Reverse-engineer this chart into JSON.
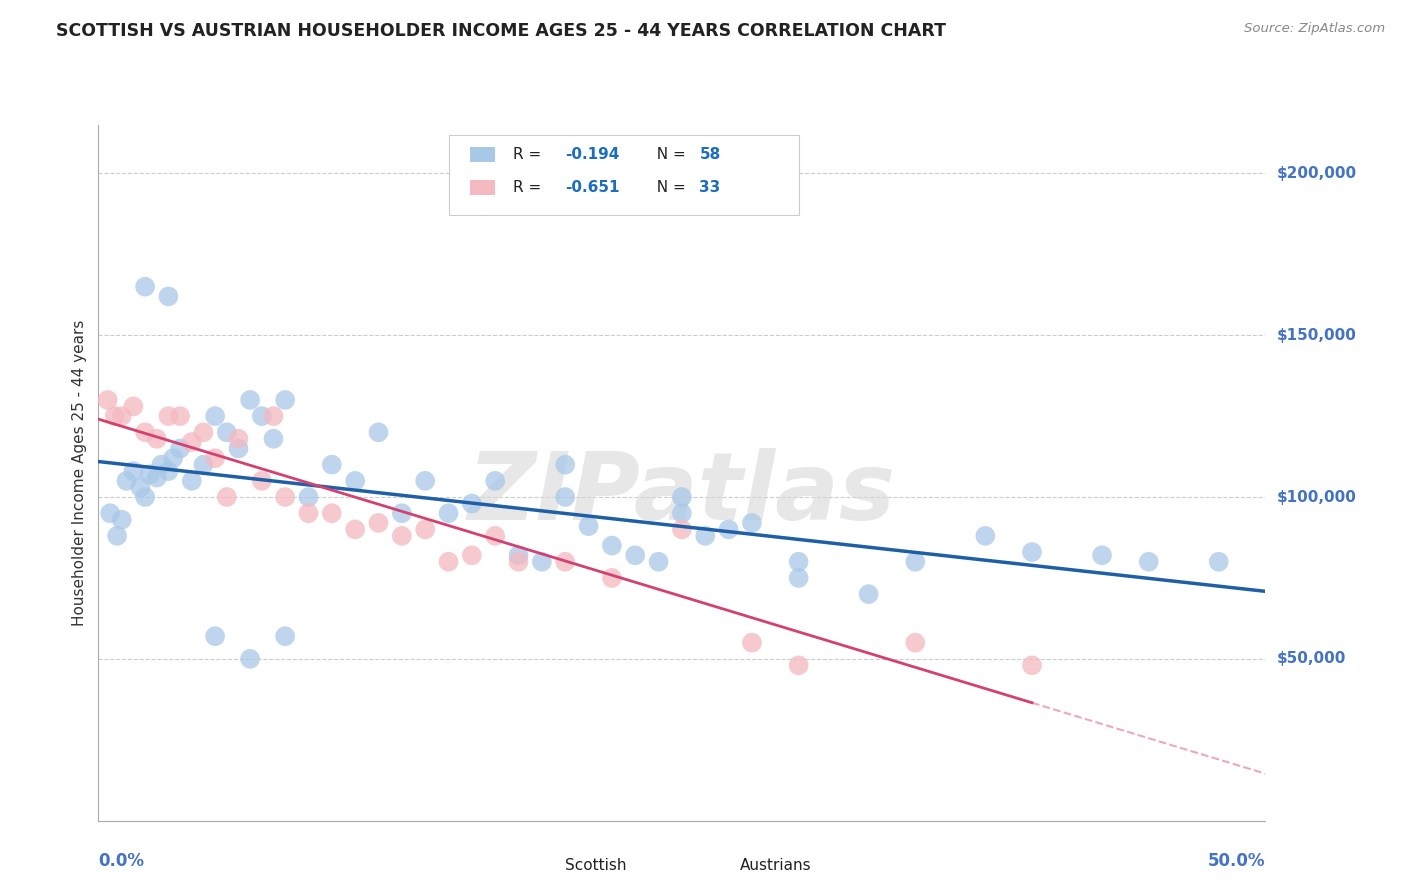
{
  "title": "SCOTTISH VS AUSTRIAN HOUSEHOLDER INCOME AGES 25 - 44 YEARS CORRELATION CHART",
  "source": "Source: ZipAtlas.com",
  "ylabel": "Householder Income Ages 25 - 44 years",
  "ytick_labels": [
    "$50,000",
    "$100,000",
    "$150,000",
    "$200,000"
  ],
  "ytick_values": [
    50000,
    100000,
    150000,
    200000
  ],
  "blue_scatter_color": "#a8c8e8",
  "pink_scatter_color": "#f4b8c0",
  "blue_line_color": "#1f5fa6",
  "pink_line_color": "#d44070",
  "blue_legend_color": "#a8c8e8",
  "pink_legend_color": "#f4b8c0",
  "r_n_color": "#1a6dbf",
  "scottish_x": [
    0.5,
    0.8,
    1.0,
    1.2,
    1.5,
    1.8,
    2.0,
    2.2,
    2.5,
    2.7,
    3.0,
    3.2,
    3.5,
    4.0,
    4.5,
    5.0,
    5.5,
    6.0,
    6.5,
    7.0,
    7.5,
    8.0,
    9.0,
    10.0,
    11.0,
    12.0,
    13.0,
    14.0,
    15.0,
    16.0,
    17.0,
    18.0,
    19.0,
    20.0,
    21.0,
    22.0,
    23.0,
    24.0,
    25.0,
    26.0,
    27.0,
    28.0,
    30.0,
    33.0,
    35.0,
    38.0,
    40.0,
    43.0,
    45.0,
    48.0,
    2.0,
    3.0,
    5.0,
    6.5,
    8.0,
    20.0,
    25.0,
    30.0
  ],
  "scottish_y": [
    95000,
    88000,
    93000,
    105000,
    108000,
    103000,
    100000,
    107000,
    106000,
    110000,
    108000,
    112000,
    115000,
    105000,
    110000,
    125000,
    120000,
    115000,
    130000,
    125000,
    118000,
    130000,
    100000,
    110000,
    105000,
    120000,
    95000,
    105000,
    95000,
    98000,
    105000,
    82000,
    80000,
    100000,
    91000,
    85000,
    82000,
    80000,
    100000,
    88000,
    90000,
    92000,
    75000,
    70000,
    80000,
    88000,
    83000,
    82000,
    80000,
    80000,
    165000,
    162000,
    57000,
    50000,
    57000,
    110000,
    95000,
    80000
  ],
  "austrians_x": [
    0.4,
    0.7,
    1.0,
    1.5,
    2.0,
    2.5,
    3.0,
    3.5,
    4.0,
    4.5,
    5.0,
    5.5,
    6.0,
    7.0,
    7.5,
    8.0,
    9.0,
    10.0,
    11.0,
    12.0,
    13.0,
    14.0,
    15.0,
    16.0,
    17.0,
    18.0,
    20.0,
    22.0,
    25.0,
    28.0,
    30.0,
    35.0,
    40.0
  ],
  "austrians_y": [
    130000,
    125000,
    125000,
    128000,
    120000,
    118000,
    125000,
    125000,
    117000,
    120000,
    112000,
    100000,
    118000,
    105000,
    125000,
    100000,
    95000,
    95000,
    90000,
    92000,
    88000,
    90000,
    80000,
    82000,
    88000,
    80000,
    80000,
    75000,
    90000,
    55000,
    48000,
    55000,
    48000
  ],
  "xlim": [
    0,
    50
  ],
  "ylim": [
    0,
    215000
  ],
  "watermark_text": "ZIPatlas",
  "background_color": "#ffffff",
  "grid_color": "#cccccc",
  "title_color": "#222222",
  "ylabel_color": "#333333",
  "axis_label_color": "#4472c4",
  "source_color": "#888888"
}
